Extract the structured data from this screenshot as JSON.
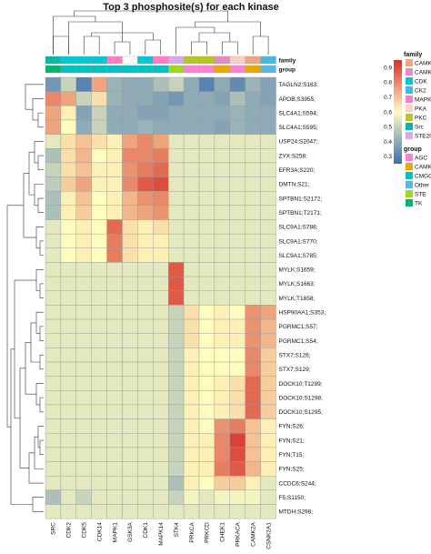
{
  "chart_data": {
    "type": "heatmap",
    "title": "Top 3 phosphosite(s) for each kinase",
    "columns": [
      "SRC",
      "CDK2",
      "CDK5",
      "CDK14",
      "MAPK1",
      "GSK3A",
      "CDK1",
      "MAPK14",
      "STK4",
      "PRKCA",
      "PRKCD",
      "CHEK1",
      "PRKACA",
      "CAMK2A",
      "CSNK2A1"
    ],
    "rows": [
      "TAGLN2;S163;",
      "APOB;S3955;",
      "SLC4A1;S594;",
      "SLC4A1;S595;",
      "USP24;S2047;",
      "ZYX;S258;",
      "EFR3A;S220;",
      "DMTN;S21;",
      "SPTBN1;S2172;",
      "SPTBN1;T2171;",
      "SLC9A1;S788;",
      "SLC9A1;S770;",
      "SLC9A1;S785;",
      "MYLK;S1659;",
      "MYLK;S1663;",
      "MYLK;T1658;",
      "HSP90AA1;S353;",
      "PGRMC1;S57;",
      "PGRMC1;S54;",
      "STX7;S126;",
      "STX7;S129;",
      "DOCK10;T1299;",
      "DOCK10;S1298;",
      "DOCK10;S1295;",
      "FYN;S26;",
      "FYN;S21;",
      "FYN;T15;",
      "FYN;S25;",
      "CCDC6;S244;",
      "F5;S1150;",
      "MTDH;S298;"
    ],
    "values": [
      [
        0.35,
        0.5,
        0.3,
        0.75,
        0.42,
        0.4,
        0.4,
        0.45,
        0.5,
        0.4,
        0.3,
        0.4,
        0.32,
        0.42,
        0.38
      ],
      [
        0.8,
        0.75,
        0.5,
        0.65,
        0.42,
        0.4,
        0.4,
        0.38,
        0.35,
        0.4,
        0.4,
        0.38,
        0.45,
        0.4,
        0.38
      ],
      [
        0.75,
        0.62,
        0.38,
        0.5,
        0.4,
        0.4,
        0.38,
        0.38,
        0.4,
        0.4,
        0.4,
        0.4,
        0.42,
        0.4,
        0.4
      ],
      [
        0.75,
        0.6,
        0.4,
        0.5,
        0.4,
        0.4,
        0.42,
        0.4,
        0.4,
        0.4,
        0.4,
        0.38,
        0.42,
        0.4,
        0.4
      ],
      [
        0.55,
        0.65,
        0.7,
        0.65,
        0.62,
        0.75,
        0.8,
        0.75,
        0.55,
        0.55,
        0.55,
        0.55,
        0.55,
        0.55,
        0.55
      ],
      [
        0.45,
        0.65,
        0.72,
        0.6,
        0.62,
        0.8,
        0.8,
        0.82,
        0.55,
        0.55,
        0.55,
        0.55,
        0.55,
        0.55,
        0.55
      ],
      [
        0.5,
        0.65,
        0.7,
        0.62,
        0.62,
        0.78,
        0.82,
        0.85,
        0.55,
        0.55,
        0.55,
        0.55,
        0.55,
        0.55,
        0.55
      ],
      [
        0.48,
        0.68,
        0.75,
        0.62,
        0.62,
        0.8,
        0.88,
        0.9,
        0.55,
        0.55,
        0.55,
        0.55,
        0.55,
        0.55,
        0.55
      ],
      [
        0.45,
        0.62,
        0.7,
        0.6,
        0.62,
        0.72,
        0.78,
        0.8,
        0.55,
        0.55,
        0.55,
        0.55,
        0.55,
        0.55,
        0.55
      ],
      [
        0.45,
        0.62,
        0.68,
        0.6,
        0.62,
        0.72,
        0.75,
        0.78,
        0.55,
        0.55,
        0.55,
        0.55,
        0.55,
        0.55,
        0.55
      ],
      [
        0.55,
        0.6,
        0.62,
        0.6,
        0.85,
        0.65,
        0.62,
        0.65,
        0.55,
        0.55,
        0.55,
        0.55,
        0.55,
        0.55,
        0.55
      ],
      [
        0.55,
        0.6,
        0.62,
        0.6,
        0.82,
        0.65,
        0.62,
        0.62,
        0.55,
        0.55,
        0.55,
        0.55,
        0.55,
        0.55,
        0.55
      ],
      [
        0.55,
        0.6,
        0.62,
        0.6,
        0.82,
        0.65,
        0.62,
        0.62,
        0.55,
        0.55,
        0.55,
        0.55,
        0.55,
        0.55,
        0.55
      ],
      [
        0.55,
        0.55,
        0.55,
        0.55,
        0.55,
        0.55,
        0.55,
        0.55,
        0.88,
        0.55,
        0.55,
        0.55,
        0.55,
        0.55,
        0.55
      ],
      [
        0.55,
        0.55,
        0.55,
        0.55,
        0.55,
        0.55,
        0.55,
        0.55,
        0.88,
        0.55,
        0.55,
        0.55,
        0.55,
        0.55,
        0.55
      ],
      [
        0.55,
        0.55,
        0.55,
        0.55,
        0.55,
        0.55,
        0.55,
        0.55,
        0.88,
        0.55,
        0.55,
        0.55,
        0.55,
        0.55,
        0.55
      ],
      [
        0.55,
        0.55,
        0.55,
        0.55,
        0.55,
        0.55,
        0.55,
        0.55,
        0.5,
        0.65,
        0.6,
        0.62,
        0.6,
        0.78,
        0.75
      ],
      [
        0.55,
        0.55,
        0.55,
        0.55,
        0.55,
        0.55,
        0.55,
        0.55,
        0.5,
        0.65,
        0.6,
        0.62,
        0.62,
        0.78,
        0.72
      ],
      [
        0.55,
        0.55,
        0.55,
        0.55,
        0.55,
        0.55,
        0.55,
        0.55,
        0.5,
        0.65,
        0.6,
        0.62,
        0.62,
        0.78,
        0.72
      ],
      [
        0.55,
        0.55,
        0.55,
        0.55,
        0.55,
        0.55,
        0.55,
        0.55,
        0.5,
        0.62,
        0.6,
        0.6,
        0.6,
        0.8,
        0.68
      ],
      [
        0.55,
        0.55,
        0.55,
        0.55,
        0.55,
        0.55,
        0.55,
        0.55,
        0.5,
        0.62,
        0.6,
        0.6,
        0.6,
        0.8,
        0.68
      ],
      [
        0.55,
        0.55,
        0.55,
        0.55,
        0.55,
        0.55,
        0.55,
        0.55,
        0.5,
        0.62,
        0.6,
        0.62,
        0.65,
        0.85,
        0.68
      ],
      [
        0.55,
        0.55,
        0.55,
        0.55,
        0.55,
        0.55,
        0.55,
        0.55,
        0.5,
        0.62,
        0.6,
        0.62,
        0.65,
        0.85,
        0.68
      ],
      [
        0.55,
        0.55,
        0.55,
        0.55,
        0.55,
        0.55,
        0.55,
        0.55,
        0.5,
        0.62,
        0.6,
        0.62,
        0.65,
        0.85,
        0.68
      ],
      [
        0.55,
        0.55,
        0.55,
        0.55,
        0.55,
        0.55,
        0.55,
        0.55,
        0.5,
        0.62,
        0.6,
        0.78,
        0.82,
        0.7,
        0.62
      ],
      [
        0.55,
        0.55,
        0.55,
        0.55,
        0.55,
        0.55,
        0.55,
        0.55,
        0.5,
        0.62,
        0.62,
        0.8,
        0.92,
        0.7,
        0.62
      ],
      [
        0.55,
        0.55,
        0.55,
        0.55,
        0.55,
        0.55,
        0.55,
        0.55,
        0.5,
        0.62,
        0.62,
        0.8,
        0.9,
        0.7,
        0.62
      ],
      [
        0.55,
        0.55,
        0.55,
        0.55,
        0.55,
        0.55,
        0.55,
        0.55,
        0.5,
        0.62,
        0.62,
        0.82,
        0.88,
        0.72,
        0.62
      ],
      [
        0.55,
        0.55,
        0.55,
        0.55,
        0.55,
        0.55,
        0.55,
        0.55,
        0.45,
        0.62,
        0.6,
        0.68,
        0.68,
        0.62,
        0.55
      ],
      [
        0.45,
        0.55,
        0.5,
        0.55,
        0.55,
        0.55,
        0.55,
        0.55,
        0.5,
        0.58,
        0.55,
        0.58,
        0.58,
        0.58,
        0.55
      ],
      [
        0.55,
        0.55,
        0.55,
        0.55,
        0.55,
        0.55,
        0.55,
        0.55,
        0.55,
        0.55,
        0.55,
        0.55,
        0.55,
        0.55,
        0.55
      ]
    ],
    "colorbar": {
      "min": 0.25,
      "max": 0.95,
      "ticks": [
        0.3,
        0.4,
        0.5,
        0.6,
        0.7,
        0.8,
        0.9
      ],
      "colors": [
        "#3b6fb0",
        "#fffcc0",
        "#d73027"
      ]
    },
    "annotations": {
      "family_label": "family",
      "group_label": "group",
      "family": [
        "Src",
        "CDK",
        "CDK",
        "CDK",
        "MAPK",
        "CMGC_",
        "CDK",
        "MAPK",
        "STE20",
        "PKC",
        "PKC",
        "CAMK_",
        "PKA",
        "CAMK",
        "CK2"
      ],
      "group": [
        "TK",
        "CMGC",
        "CMGC",
        "CMGC",
        "CMGC",
        "CMGC",
        "CMGC",
        "CMGC",
        "STE",
        "AGC",
        "AGC",
        "CAMK",
        "AGC",
        "CAMK",
        "Other"
      ]
    },
    "legend_family": {
      "title": "family",
      "entries": [
        {
          "label": "CAMK",
          "color": "#f4a582"
        },
        {
          "label": "CAMK_",
          "color": "#e78ac3"
        },
        {
          "label": "CDK",
          "color": "#00c5d6"
        },
        {
          "label": "CK2",
          "color": "#45b8e8"
        },
        {
          "label": "MAPK",
          "color": "#ff7dc8"
        },
        {
          "label": "PKA",
          "color": "#fcd0c0"
        },
        {
          "label": "PKC",
          "color": "#b5c81e"
        },
        {
          "label": "Src",
          "color": "#00b9a8"
        },
        {
          "label": "STE20",
          "color": "#d7a8f0"
        }
      ],
      "cmgc_color": "#ffffff"
    },
    "legend_group": {
      "title": "group",
      "entries": [
        {
          "label": "AGC",
          "color": "#ff80d6"
        },
        {
          "label": "CAMK",
          "color": "#e8a800"
        },
        {
          "label": "CMGC",
          "color": "#00c2c2"
        },
        {
          "label": "Other",
          "color": "#57b8e8"
        },
        {
          "label": "STE",
          "color": "#a0d81c"
        },
        {
          "label": "TK",
          "color": "#00b66b"
        }
      ]
    }
  }
}
